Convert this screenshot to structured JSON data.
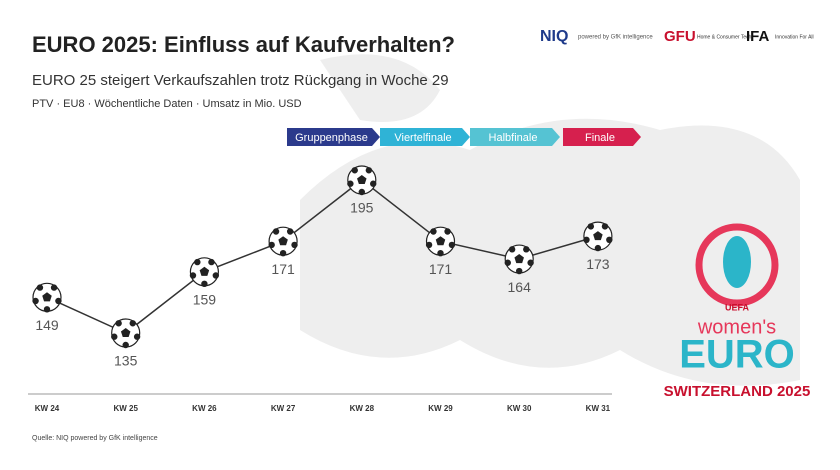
{
  "chart_data": {
    "type": "line",
    "title": "EURO 2025: Einfluss auf Kaufverhalten?",
    "subtitle": "EURO 25 steigert Verkaufszahlen trotz Rückgang in Woche 29",
    "note": "PTV · EU8 · Wöchentliche Daten · Umsatz in Mio. USD",
    "categories": [
      "KW 24",
      "KW 25",
      "KW 26",
      "KW 27",
      "KW 28",
      "KW 29",
      "KW 30",
      "KW 31"
    ],
    "values": [
      149,
      135,
      159,
      171,
      195,
      171,
      164,
      173
    ],
    "color": "#333333",
    "phases": [
      {
        "label": "Gruppenphase",
        "color": "#2b3a8c"
      },
      {
        "label": "Viertelfinale",
        "color": "#2fb3d6"
      },
      {
        "label": "Halbfinale",
        "color": "#55c3d3"
      },
      {
        "label": "Finale",
        "color": "#d6204e"
      }
    ],
    "source": "Quelle: NIQ powered by GfK intelligence"
  },
  "logos": {
    "niq": "NIQ",
    "niq_sub": "powered by GfK intelligence",
    "gfu": "GFU",
    "gfu_sub": "Home & Consumer Tech",
    "ifa": "IFA",
    "ifa_sub": "Innovation For All"
  },
  "event_logo": {
    "uefa": "UEFA",
    "womens": "women's",
    "euro": "EURO",
    "host": "SWITZERLAND 2025"
  }
}
